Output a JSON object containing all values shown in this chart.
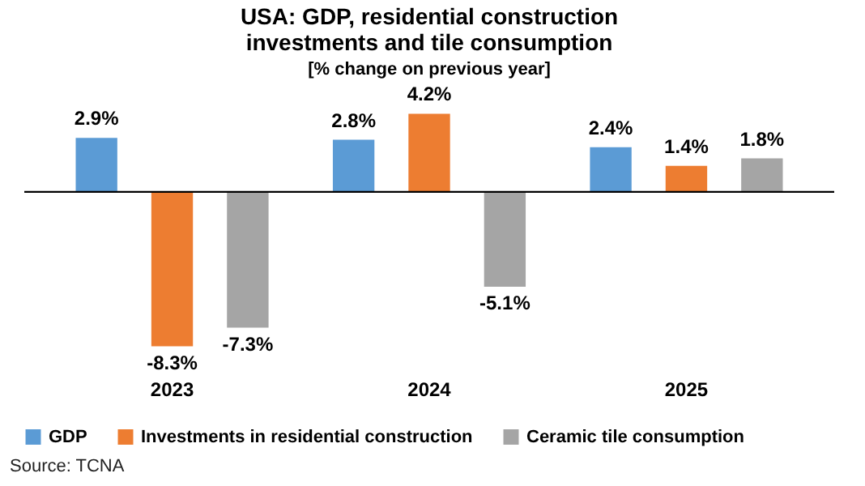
{
  "chart_data": {
    "type": "bar",
    "title": "USA: GDP, residential construction investments and tile consumption",
    "subtitle": "[% change on previous year]",
    "categories": [
      "2023",
      "2024",
      "2025"
    ],
    "series": [
      {
        "name": "GDP",
        "color": "#5b9bd5",
        "values": [
          2.9,
          2.8,
          2.4
        ],
        "value_labels": [
          "2.9%",
          "2.8%",
          "2.4%"
        ]
      },
      {
        "name": "Investments in residential construction",
        "color": "#ed7d31",
        "values": [
          -8.3,
          4.2,
          1.4
        ],
        "value_labels": [
          "-8.3%",
          "4.2%",
          "1.4%"
        ]
      },
      {
        "name": "Ceramic tile consumption",
        "color": "#a5a5a5",
        "values": [
          -7.3,
          -5.1,
          1.8
        ],
        "value_labels": [
          "-7.3%",
          "-5.1%",
          "1.8%"
        ]
      }
    ],
    "legend": "bottom",
    "annotations": [
      "Source: TCNA"
    ]
  }
}
